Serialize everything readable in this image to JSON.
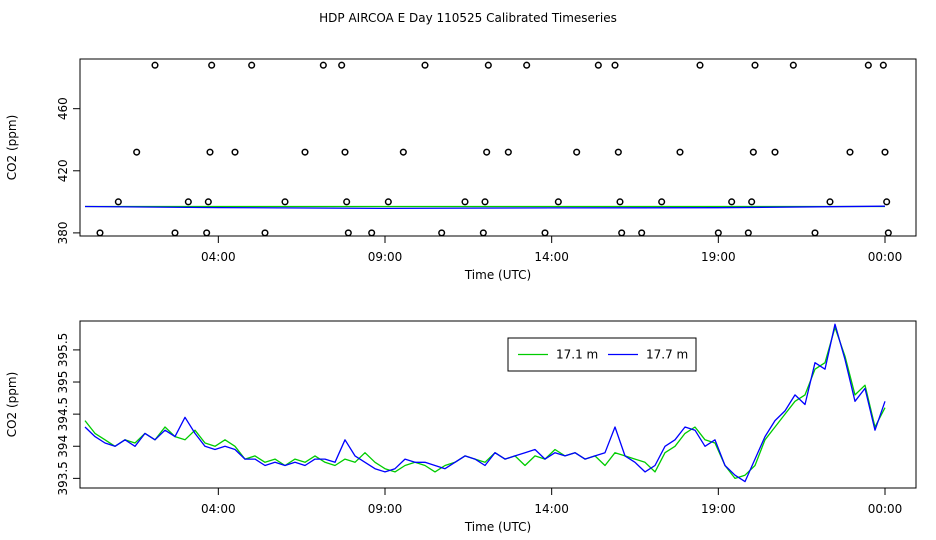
{
  "title": "HDP AIRCOA E  Day 110525  Calibrated Timeseries",
  "chart_data": [
    {
      "type": "scatter",
      "title": "",
      "xlabel": "Time (UTC)",
      "ylabel": "CO2 (ppm)",
      "x_unit": "hours since 00:00 UTC on day 110525",
      "xlim": [
        0,
        24.2
      ],
      "ylim": [
        378,
        492
      ],
      "x_ticks": [
        {
          "x": 4,
          "label": "04:00"
        },
        {
          "x": 9,
          "label": "09:00"
        },
        {
          "x": 14,
          "label": "14:00"
        },
        {
          "x": 19,
          "label": "19:00"
        },
        {
          "x": 24,
          "label": "00:00"
        }
      ],
      "y_ticks": [
        {
          "y": 380,
          "label": "380"
        },
        {
          "y": 420,
          "label": "420"
        },
        {
          "y": 460,
          "label": "460"
        }
      ],
      "points": [
        [
          0.45,
          380
        ],
        [
          1.0,
          400
        ],
        [
          1.55,
          432
        ],
        [
          2.1,
          488
        ],
        [
          2.7,
          380
        ],
        [
          3.1,
          400
        ],
        [
          3.65,
          380
        ],
        [
          3.7,
          400
        ],
        [
          3.75,
          432
        ],
        [
          3.8,
          488
        ],
        [
          4.5,
          432
        ],
        [
          5.0,
          488
        ],
        [
          5.4,
          380
        ],
        [
          6.0,
          400
        ],
        [
          6.6,
          432
        ],
        [
          7.15,
          488
        ],
        [
          7.7,
          488
        ],
        [
          7.8,
          432
        ],
        [
          7.85,
          400
        ],
        [
          7.9,
          380
        ],
        [
          8.6,
          380
        ],
        [
          9.1,
          400
        ],
        [
          9.55,
          432
        ],
        [
          10.2,
          488
        ],
        [
          10.7,
          380
        ],
        [
          11.4,
          400
        ],
        [
          11.95,
          380
        ],
        [
          12.0,
          400
        ],
        [
          12.05,
          432
        ],
        [
          12.1,
          488
        ],
        [
          12.7,
          432
        ],
        [
          13.25,
          488
        ],
        [
          13.8,
          380
        ],
        [
          14.2,
          400
        ],
        [
          14.75,
          432
        ],
        [
          15.4,
          488
        ],
        [
          15.9,
          488
        ],
        [
          16.0,
          432
        ],
        [
          16.05,
          400
        ],
        [
          16.1,
          380
        ],
        [
          16.7,
          380
        ],
        [
          17.3,
          400
        ],
        [
          17.85,
          432
        ],
        [
          18.45,
          488
        ],
        [
          19.0,
          380
        ],
        [
          19.4,
          400
        ],
        [
          19.9,
          380
        ],
        [
          20.0,
          400
        ],
        [
          20.05,
          432
        ],
        [
          20.1,
          488
        ],
        [
          20.7,
          432
        ],
        [
          21.25,
          488
        ],
        [
          21.9,
          380
        ],
        [
          22.35,
          400
        ],
        [
          22.95,
          432
        ],
        [
          23.5,
          488
        ],
        [
          23.95,
          488
        ],
        [
          24.0,
          432
        ],
        [
          24.05,
          400
        ],
        [
          24.1,
          380
        ]
      ],
      "series": [
        {
          "color": "#00CC00",
          "x": [
            0,
            24
          ],
          "y": [
            397,
            397
          ]
        },
        {
          "color": "#0000FF",
          "x": [
            0,
            4,
            9,
            14,
            19,
            22,
            24
          ],
          "y": [
            397,
            396.3,
            395.8,
            396.1,
            396.2,
            396.8,
            397.2
          ]
        }
      ]
    },
    {
      "type": "line",
      "title": "",
      "xlabel": "Time (UTC)",
      "ylabel": "CO2 (ppm)",
      "x_unit": "hours since 00:00 UTC on day 110525",
      "xlim": [
        0,
        24.2
      ],
      "ylim": [
        393.35,
        395.95
      ],
      "x_ticks": [
        {
          "x": 4,
          "label": "04:00"
        },
        {
          "x": 9,
          "label": "09:00"
        },
        {
          "x": 14,
          "label": "14:00"
        },
        {
          "x": 19,
          "label": "19:00"
        },
        {
          "x": 24,
          "label": "00:00"
        }
      ],
      "y_ticks": [
        {
          "y": 393.5,
          "label": "393.5"
        },
        {
          "y": 394.0,
          "label": "394"
        },
        {
          "y": 394.5,
          "label": "394.5"
        },
        {
          "y": 395.0,
          "label": "395"
        },
        {
          "y": 395.5,
          "label": "395.5"
        }
      ],
      "legend": {
        "position": "top-right"
      },
      "series": [
        {
          "name": "17.1 m",
          "color": "#00CC00",
          "x": [
            0.0,
            0.3,
            0.6,
            0.9,
            1.2,
            1.5,
            1.8,
            2.1,
            2.4,
            2.7,
            3.0,
            3.3,
            3.6,
            3.9,
            4.2,
            4.5,
            4.8,
            5.1,
            5.4,
            5.7,
            6.0,
            6.3,
            6.6,
            6.9,
            7.2,
            7.5,
            7.8,
            8.1,
            8.4,
            8.7,
            9.0,
            9.3,
            9.6,
            9.9,
            10.2,
            10.5,
            10.8,
            11.1,
            11.4,
            11.7,
            12.0,
            12.3,
            12.6,
            12.9,
            13.2,
            13.5,
            13.8,
            14.1,
            14.4,
            14.7,
            15.0,
            15.3,
            15.6,
            15.9,
            16.2,
            16.5,
            16.8,
            17.1,
            17.4,
            17.7,
            18.0,
            18.3,
            18.6,
            18.9,
            19.2,
            19.5,
            19.8,
            20.1,
            20.4,
            20.7,
            21.0,
            21.3,
            21.6,
            21.9,
            22.2,
            22.5,
            22.8,
            23.1,
            23.4,
            23.7,
            24.0
          ],
          "y": [
            394.4,
            394.2,
            394.1,
            394.0,
            394.1,
            394.05,
            394.2,
            394.1,
            394.3,
            394.15,
            394.1,
            394.25,
            394.05,
            394.0,
            394.1,
            394.0,
            393.8,
            393.85,
            393.75,
            393.8,
            393.7,
            393.8,
            393.75,
            393.85,
            393.75,
            393.7,
            393.8,
            393.75,
            393.9,
            393.75,
            393.65,
            393.6,
            393.7,
            393.75,
            393.7,
            393.6,
            393.7,
            393.75,
            393.85,
            393.8,
            393.75,
            393.9,
            393.8,
            393.85,
            393.7,
            393.85,
            393.8,
            393.95,
            393.85,
            393.9,
            393.8,
            393.85,
            393.7,
            393.9,
            393.85,
            393.8,
            393.75,
            393.6,
            393.9,
            394.0,
            394.2,
            394.3,
            394.1,
            394.05,
            393.7,
            393.5,
            393.55,
            393.7,
            394.1,
            394.3,
            394.5,
            394.7,
            394.8,
            395.2,
            395.3,
            395.85,
            395.4,
            394.8,
            394.95,
            394.3,
            394.6
          ]
        },
        {
          "name": "17.7 m",
          "color": "#0000FF",
          "x": [
            0.0,
            0.3,
            0.6,
            0.9,
            1.2,
            1.5,
            1.8,
            2.1,
            2.4,
            2.7,
            3.0,
            3.3,
            3.6,
            3.9,
            4.2,
            4.5,
            4.8,
            5.1,
            5.4,
            5.7,
            6.0,
            6.3,
            6.6,
            6.9,
            7.2,
            7.5,
            7.8,
            8.1,
            8.4,
            8.7,
            9.0,
            9.3,
            9.6,
            9.9,
            10.2,
            10.5,
            10.8,
            11.1,
            11.4,
            11.7,
            12.0,
            12.3,
            12.6,
            12.9,
            13.2,
            13.5,
            13.8,
            14.1,
            14.4,
            14.7,
            15.0,
            15.3,
            15.6,
            15.9,
            16.2,
            16.5,
            16.8,
            17.1,
            17.4,
            17.7,
            18.0,
            18.3,
            18.6,
            18.9,
            19.2,
            19.5,
            19.8,
            20.1,
            20.4,
            20.7,
            21.0,
            21.3,
            21.6,
            21.9,
            22.2,
            22.5,
            22.8,
            23.1,
            23.4,
            23.7,
            24.0
          ],
          "y": [
            394.3,
            394.15,
            394.05,
            394.0,
            394.1,
            394.0,
            394.2,
            394.1,
            394.25,
            394.15,
            394.45,
            394.2,
            394.0,
            393.95,
            394.0,
            393.95,
            393.8,
            393.8,
            393.7,
            393.75,
            393.7,
            393.75,
            393.7,
            393.8,
            393.8,
            393.75,
            394.1,
            393.85,
            393.75,
            393.65,
            393.6,
            393.65,
            393.8,
            393.75,
            393.75,
            393.7,
            393.65,
            393.75,
            393.85,
            393.8,
            393.7,
            393.9,
            393.8,
            393.85,
            393.9,
            393.95,
            393.8,
            393.9,
            393.85,
            393.9,
            393.8,
            393.85,
            393.9,
            394.3,
            393.85,
            393.75,
            393.6,
            393.7,
            394.0,
            394.1,
            394.3,
            394.25,
            394.0,
            394.1,
            393.7,
            393.55,
            393.45,
            393.8,
            394.15,
            394.4,
            394.55,
            394.8,
            394.65,
            395.3,
            395.2,
            395.9,
            395.35,
            394.7,
            394.9,
            394.25,
            394.7
          ]
        }
      ]
    }
  ]
}
